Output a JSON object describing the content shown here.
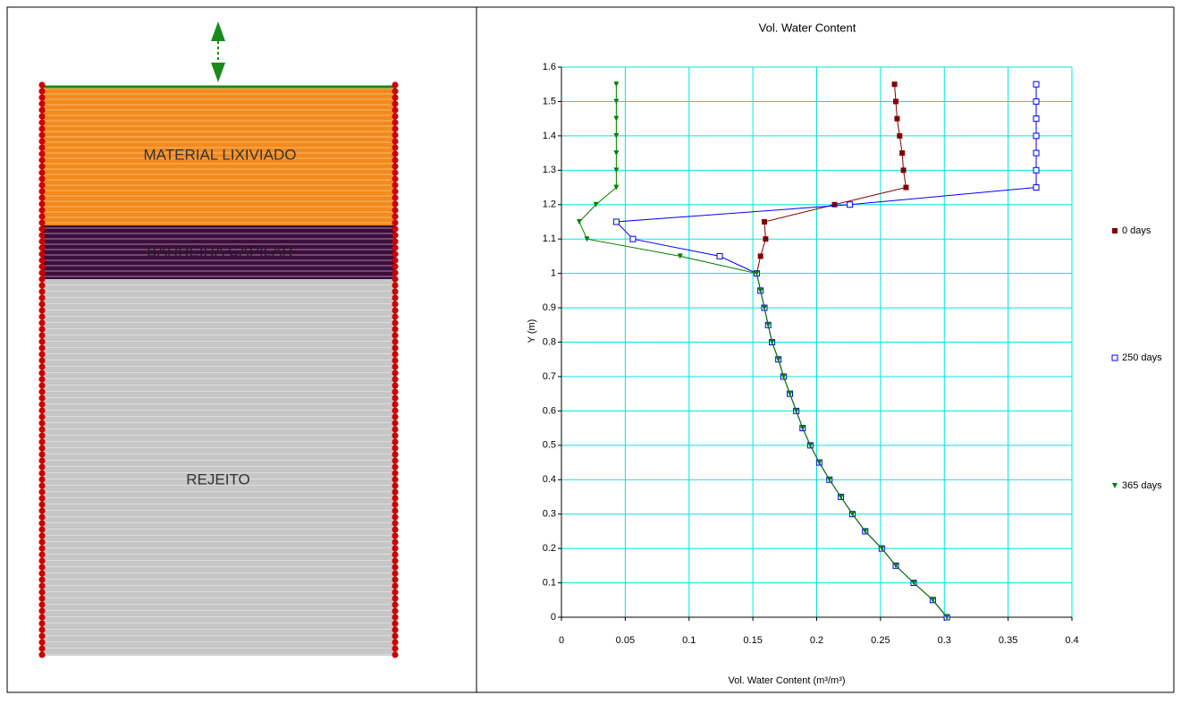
{
  "diagram": {
    "layers": [
      {
        "label": "MATERIAL LIXIVIADO"
      },
      {
        "label": "BARREIRA CAPILAR"
      },
      {
        "label": "REJEITO"
      }
    ]
  },
  "chart_data": {
    "type": "line",
    "title": "Vol. Water Content",
    "x_label": "Vol. Water Content (m³/m³)",
    "y_label": "Y (m)",
    "y": [
      0,
      0.05,
      0.1,
      0.15,
      0.2,
      0.25,
      0.3,
      0.35,
      0.4,
      0.45,
      0.5,
      0.55,
      0.6,
      0.65,
      0.7,
      0.75,
      0.8,
      0.85,
      0.9,
      0.95,
      1.0,
      1.05,
      1.1,
      1.15,
      1.2,
      1.25,
      1.3,
      1.35,
      1.4,
      1.45,
      1.5,
      1.55
    ],
    "series": [
      {
        "name": "0 days",
        "color": "#800000",
        "marker": "square",
        "values": [
          0.302,
          0.291,
          0.276,
          0.262,
          0.251,
          0.238,
          0.228,
          0.219,
          0.21,
          0.202,
          0.195,
          0.189,
          0.184,
          0.179,
          0.174,
          0.17,
          0.165,
          0.162,
          0.159,
          0.156,
          0.153,
          0.156,
          0.16,
          0.159,
          0.214,
          0.27,
          0.268,
          0.267,
          0.265,
          0.263,
          0.262,
          0.261
        ]
      },
      {
        "name": "250 days",
        "color": "#0000ff",
        "marker": "hollow-square",
        "values": [
          0.302,
          0.291,
          0.276,
          0.262,
          0.251,
          0.238,
          0.228,
          0.219,
          0.21,
          0.202,
          0.195,
          0.189,
          0.184,
          0.179,
          0.174,
          0.17,
          0.165,
          0.162,
          0.159,
          0.156,
          0.153,
          0.124,
          0.056,
          0.043,
          0.226,
          0.372,
          0.372,
          0.372,
          0.372,
          0.372,
          0.372,
          0.372
        ]
      },
      {
        "name": "365 days",
        "color": "#008000",
        "marker": "triangle-down",
        "values": [
          0.302,
          0.291,
          0.276,
          0.262,
          0.251,
          0.238,
          0.228,
          0.219,
          0.21,
          0.202,
          0.195,
          0.189,
          0.184,
          0.179,
          0.174,
          0.17,
          0.165,
          0.162,
          0.159,
          0.156,
          0.153,
          0.093,
          0.02,
          0.014,
          0.027,
          0.043,
          0.043,
          0.043,
          0.043,
          0.043,
          0.043,
          0.043
        ]
      }
    ],
    "xlim": [
      0,
      0.4
    ],
    "xticks": [
      0,
      0.05,
      0.1,
      0.15,
      0.2,
      0.25,
      0.3,
      0.35,
      0.4
    ],
    "ylim": [
      0,
      1.6
    ],
    "yticks": [
      0,
      0.1,
      0.2,
      0.3,
      0.4,
      0.5,
      0.6,
      0.7,
      0.8,
      0.9,
      1,
      1.1,
      1.2,
      1.3,
      1.4,
      1.5,
      1.6
    ],
    "grid": true,
    "grid_color": "#00e5e5",
    "legend": "right"
  }
}
